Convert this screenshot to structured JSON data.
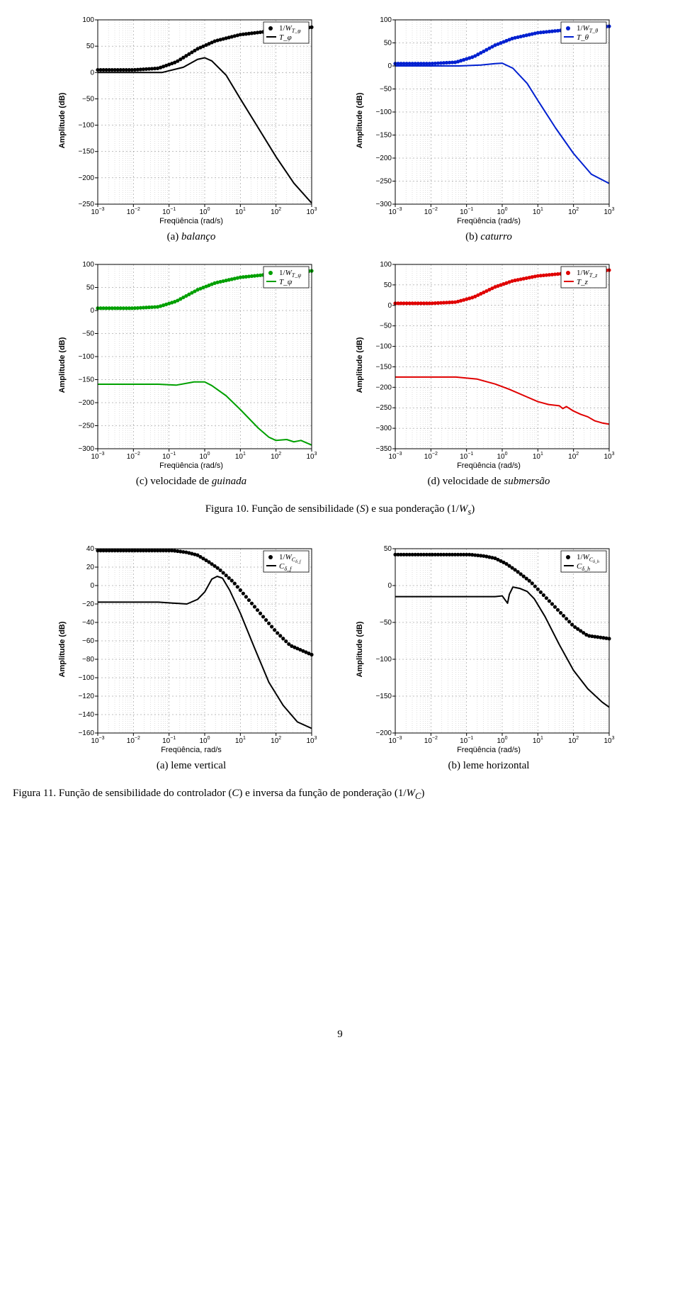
{
  "axis": {
    "xlabel": "Freqüência (rad/s)",
    "xlabel_alt": "Freqüência, rad/s",
    "ylabel": "Amplitude (dB)",
    "x_ticks": [
      -3,
      -2,
      -1,
      0,
      1,
      2,
      3
    ],
    "label_fontsize": 11,
    "tick_fontsize": 10,
    "grid_major_color": "#808080",
    "grid_minor_color": "#b0b0b0",
    "log_minors": [
      2,
      3,
      4,
      5,
      6,
      7,
      8,
      9
    ],
    "plot_bg": "#ffffff",
    "axis_color": "#000000"
  },
  "charts": {
    "a": {
      "type": "line",
      "sub": "(a)",
      "sub_it": "balanço",
      "ylim": [
        -250,
        100
      ],
      "ystep": 50,
      "series": {
        "color": "#000000",
        "marker_color": "#000000",
        "lw": 2,
        "weight_pts": [
          [
            -3,
            5
          ],
          [
            -2,
            5
          ],
          [
            -1.3,
            8
          ],
          [
            -0.8,
            20
          ],
          [
            -0.2,
            45
          ],
          [
            0.3,
            60
          ],
          [
            1,
            72
          ],
          [
            2,
            80
          ],
          [
            3,
            86
          ]
        ],
        "line_pts": [
          [
            -3,
            0
          ],
          [
            -2,
            0
          ],
          [
            -1.2,
            0
          ],
          [
            -0.6,
            10
          ],
          [
            -0.2,
            25
          ],
          [
            0,
            28
          ],
          [
            0.2,
            22
          ],
          [
            0.6,
            -5
          ],
          [
            1,
            -50
          ],
          [
            1.5,
            -105
          ],
          [
            2,
            -160
          ],
          [
            2.5,
            -210
          ],
          [
            3,
            -248
          ]
        ]
      },
      "legend": {
        "w": "1/W_{T_φ}",
        "t": "T_φ"
      }
    },
    "b": {
      "type": "line",
      "sub": "(b)",
      "sub_it": "caturro",
      "ylim": [
        -300,
        100
      ],
      "ystep": 50,
      "series": {
        "color": "#0020d0",
        "marker_color": "#0020d0",
        "lw": 2,
        "weight_pts": [
          [
            -3,
            5
          ],
          [
            -2,
            5
          ],
          [
            -1.3,
            8
          ],
          [
            -0.8,
            20
          ],
          [
            -0.2,
            45
          ],
          [
            0.3,
            60
          ],
          [
            1,
            72
          ],
          [
            2,
            80
          ],
          [
            3,
            86
          ]
        ],
        "line_pts": [
          [
            -3,
            0
          ],
          [
            -2,
            0
          ],
          [
            -1.2,
            0
          ],
          [
            -0.6,
            2
          ],
          [
            -0.2,
            5
          ],
          [
            0,
            6
          ],
          [
            0.3,
            -5
          ],
          [
            0.7,
            -38
          ],
          [
            1,
            -75
          ],
          [
            1.5,
            -135
          ],
          [
            2,
            -190
          ],
          [
            2.5,
            -235
          ],
          [
            3,
            -255
          ]
        ]
      },
      "legend": {
        "w": "1/W_{T_θ}",
        "t": "T_θ"
      }
    },
    "c": {
      "type": "line",
      "sub": "(c) velocidade de",
      "sub_it": "guinada",
      "ylim": [
        -300,
        100
      ],
      "ystep": 50,
      "series": {
        "color": "#00a000",
        "marker_color": "#00a000",
        "lw": 2,
        "weight_pts": [
          [
            -3,
            5
          ],
          [
            -2,
            5
          ],
          [
            -1.3,
            8
          ],
          [
            -0.8,
            20
          ],
          [
            -0.2,
            45
          ],
          [
            0.3,
            60
          ],
          [
            1,
            72
          ],
          [
            2,
            80
          ],
          [
            3,
            86
          ]
        ],
        "line_pts": [
          [
            -3,
            -160
          ],
          [
            -2,
            -160
          ],
          [
            -1.3,
            -160
          ],
          [
            -0.8,
            -162
          ],
          [
            -0.3,
            -155
          ],
          [
            0,
            -155
          ],
          [
            0.2,
            -163
          ],
          [
            0.6,
            -185
          ],
          [
            1,
            -215
          ],
          [
            1.5,
            -255
          ],
          [
            1.8,
            -275
          ],
          [
            2,
            -282
          ],
          [
            2.3,
            -280
          ],
          [
            2.5,
            -285
          ],
          [
            2.7,
            -282
          ],
          [
            3,
            -292
          ]
        ]
      },
      "legend": {
        "w": "1/W_{T_ψ}",
        "t": "T_ψ"
      }
    },
    "d": {
      "type": "line",
      "sub": "(d) velocidade de",
      "sub_it": "submersão",
      "ylim": [
        -350,
        100
      ],
      "ystep": 50,
      "series": {
        "color": "#e00000",
        "marker_color": "#e00000",
        "lw": 2,
        "weight_pts": [
          [
            -3,
            5
          ],
          [
            -2,
            5
          ],
          [
            -1.3,
            8
          ],
          [
            -0.8,
            20
          ],
          [
            -0.2,
            45
          ],
          [
            0.3,
            60
          ],
          [
            1,
            72
          ],
          [
            2,
            80
          ],
          [
            3,
            86
          ]
        ],
        "line_pts": [
          [
            -3,
            -175
          ],
          [
            -2,
            -175
          ],
          [
            -1.3,
            -175
          ],
          [
            -0.7,
            -180
          ],
          [
            -0.2,
            -192
          ],
          [
            0.2,
            -205
          ],
          [
            0.6,
            -220
          ],
          [
            1,
            -235
          ],
          [
            1.3,
            -242
          ],
          [
            1.6,
            -245
          ],
          [
            1.7,
            -252
          ],
          [
            1.8,
            -247
          ],
          [
            2,
            -258
          ],
          [
            2.2,
            -266
          ],
          [
            2.4,
            -272
          ],
          [
            2.6,
            -282
          ],
          [
            2.8,
            -287
          ],
          [
            3,
            -290
          ]
        ]
      },
      "legend": {
        "w": "1/W_{T_z}",
        "t": "T_z"
      }
    },
    "e": {
      "type": "line",
      "sub": "(a) leme vertical",
      "sub_it": "",
      "xlabel_key": "xlabel_alt",
      "ylim": [
        -160,
        40
      ],
      "ystep": 20,
      "series": {
        "color": "#000000",
        "marker_color": "#000000",
        "lw": 2,
        "weight_pts": [
          [
            -3,
            38
          ],
          [
            -2,
            38
          ],
          [
            -1.3,
            38
          ],
          [
            -0.9,
            38
          ],
          [
            -0.5,
            36
          ],
          [
            -0.2,
            33
          ],
          [
            0.1,
            26
          ],
          [
            0.4,
            18
          ],
          [
            0.8,
            4
          ],
          [
            1.2,
            -14
          ],
          [
            1.6,
            -32
          ],
          [
            2,
            -50
          ],
          [
            2.4,
            -65
          ],
          [
            3,
            -75
          ]
        ],
        "line_pts": [
          [
            -3,
            -18
          ],
          [
            -2,
            -18
          ],
          [
            -1.3,
            -18
          ],
          [
            -0.9,
            -19
          ],
          [
            -0.5,
            -20
          ],
          [
            -0.2,
            -15
          ],
          [
            0,
            -7
          ],
          [
            0.2,
            7
          ],
          [
            0.35,
            10
          ],
          [
            0.5,
            8
          ],
          [
            0.7,
            -5
          ],
          [
            1,
            -30
          ],
          [
            1.4,
            -68
          ],
          [
            1.8,
            -105
          ],
          [
            2.2,
            -130
          ],
          [
            2.6,
            -148
          ],
          [
            3,
            -155
          ]
        ]
      },
      "legend": {
        "w": "1/W_{C_{δ_f}}",
        "t": "C_{δ_f}"
      }
    },
    "f": {
      "type": "line",
      "sub": "(b) leme horizontal",
      "sub_it": "",
      "ylim": [
        -200,
        50
      ],
      "ystep": 50,
      "series": {
        "color": "#000000",
        "marker_color": "#000000",
        "lw": 2,
        "weight_pts": [
          [
            -3,
            42
          ],
          [
            -2,
            42
          ],
          [
            -1.3,
            42
          ],
          [
            -0.9,
            42
          ],
          [
            -0.5,
            40
          ],
          [
            -0.2,
            37
          ],
          [
            0.1,
            30
          ],
          [
            0.4,
            20
          ],
          [
            0.8,
            5
          ],
          [
            1.2,
            -15
          ],
          [
            1.6,
            -35
          ],
          [
            2,
            -55
          ],
          [
            2.4,
            -68
          ],
          [
            3,
            -72
          ]
        ],
        "line_pts": [
          [
            -3,
            -15
          ],
          [
            -2,
            -15
          ],
          [
            -1.3,
            -15
          ],
          [
            -0.9,
            -15
          ],
          [
            -0.5,
            -15
          ],
          [
            -0.2,
            -15
          ],
          [
            0,
            -14
          ],
          [
            0.15,
            -24
          ],
          [
            0.2,
            -12
          ],
          [
            0.3,
            -2
          ],
          [
            0.4,
            -3
          ],
          [
            0.5,
            -4
          ],
          [
            0.7,
            -8
          ],
          [
            0.9,
            -18
          ],
          [
            1.2,
            -42
          ],
          [
            1.6,
            -80
          ],
          [
            2,
            -115
          ],
          [
            2.4,
            -140
          ],
          [
            2.8,
            -158
          ],
          [
            3,
            -165
          ]
        ]
      },
      "legend": {
        "w": "1/W_{C_{δ_h}}",
        "t": "C_{δ_h}"
      }
    }
  },
  "captions": {
    "fig10": "Figura 10. Função de sensibilidade (S) e sua ponderação (1/Ws)",
    "fig11": "Figura 11. Função de sensibilidade do controlador (C) e inversa da função de ponderação (1/WC)"
  },
  "pagenum": "9"
}
